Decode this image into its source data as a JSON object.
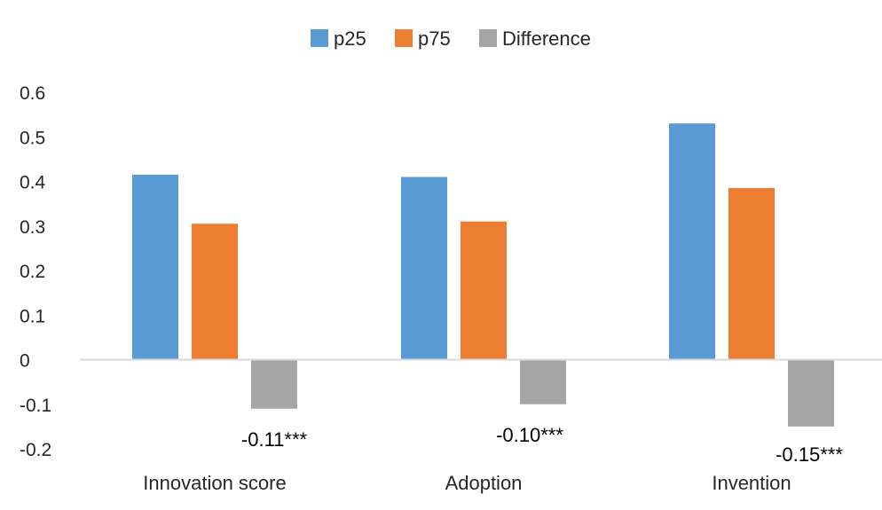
{
  "chart_data": {
    "type": "bar",
    "categories": [
      "Innovation score",
      "Adoption",
      "Invention"
    ],
    "series": [
      {
        "name": "p25",
        "values": [
          0.415,
          0.41,
          0.53
        ],
        "color": "#5B9BD5"
      },
      {
        "name": "p75",
        "values": [
          0.305,
          0.31,
          0.385
        ],
        "color": "#ED7D31"
      },
      {
        "name": "Difference",
        "values": [
          -0.11,
          -0.1,
          -0.15
        ],
        "color": "#A5A5A5"
      }
    ],
    "data_labels": {
      "series": "Difference",
      "labels": [
        "-0.11***",
        "-0.10***",
        "-0.15***"
      ]
    },
    "yticks": [
      "0.6",
      "0.5",
      "0.4",
      "0.3",
      "0.2",
      "0.1",
      "0",
      "-0.1",
      "-0.2"
    ],
    "ylim": [
      -0.2,
      0.6
    ],
    "grid": false,
    "legend_position": "top",
    "title": "",
    "xlabel": "",
    "ylabel": ""
  }
}
